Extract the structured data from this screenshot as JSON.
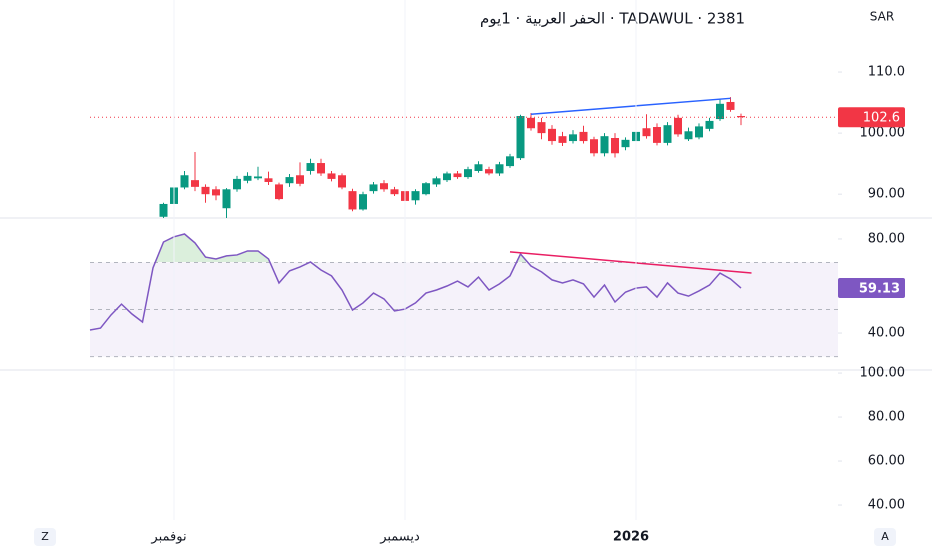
{
  "chart_data": [
    {
      "type": "candlestick",
      "title": "TADAWUL · 2381 · الحفر العربية · 1يوم",
      "y_label": "SAR",
      "categories": [
        null,
        null,
        null,
        null,
        null,
        null,
        null,
        null,
        "نوفمبر",
        null,
        null,
        null,
        null,
        null,
        null,
        null,
        null,
        null,
        null,
        null,
        null,
        null,
        null,
        null,
        null,
        null,
        null,
        null,
        null,
        null,
        "ديسمبر",
        null,
        null,
        null,
        null,
        null,
        null,
        null,
        null,
        null,
        null,
        null,
        null,
        null,
        null,
        null,
        null,
        null,
        null,
        null,
        null,
        null,
        "2026",
        null,
        null,
        null,
        null,
        null,
        null,
        null,
        null,
        null,
        null
      ],
      "open": [
        null,
        null,
        null,
        null,
        null,
        null,
        null,
        86.3,
        88.4,
        91.1,
        92.3,
        91.2,
        90.8,
        87.7,
        90.8,
        92.2,
        92.6,
        92.6,
        91.6,
        91.8,
        93.1,
        93.8,
        95.1,
        93.4,
        93.1,
        90.5,
        87.5,
        90.5,
        91.8,
        90.8,
        90.5,
        89.0,
        90.0,
        91.6,
        92.3,
        93.4,
        92.8,
        93.8,
        94.1,
        93.4,
        94.6,
        95.9,
        102.5,
        101.8,
        100.7,
        99.5,
        98.7,
        100.2,
        99.0,
        96.7,
        99.2,
        97.7,
        98.7,
        100.8,
        101.0,
        98.4,
        102.5,
        99.0,
        99.3,
        100.7,
        102.3,
        105.1,
        102.8
      ],
      "high": [
        null,
        null,
        null,
        null,
        null,
        null,
        null,
        88.6,
        92.8,
        93.8,
        96.9,
        91.6,
        91.3,
        91.0,
        93.0,
        93.6,
        94.5,
        93.7,
        91.9,
        93.3,
        95.2,
        95.8,
        95.8,
        93.8,
        93.4,
        90.9,
        90.4,
        92.0,
        92.3,
        91.2,
        90.8,
        90.8,
        92.0,
        92.9,
        93.7,
        93.8,
        94.5,
        95.4,
        94.5,
        95.3,
        96.6,
        103.0,
        103.3,
        102.5,
        101.3,
        100.2,
        100.5,
        101.2,
        99.4,
        100.0,
        100.0,
        99.3,
        101.0,
        103.1,
        101.6,
        101.8,
        103.0,
        100.9,
        101.6,
        102.5,
        105.5,
        105.9,
        103.2
      ],
      "low": [
        null,
        null,
        null,
        null,
        null,
        null,
        null,
        86.1,
        88.2,
        90.8,
        90.5,
        88.6,
        89.0,
        86.0,
        90.4,
        91.8,
        92.3,
        91.5,
        89.0,
        91.2,
        91.3,
        93.2,
        93.0,
        92.1,
        90.8,
        87.2,
        87.3,
        90.1,
        90.4,
        89.7,
        88.5,
        88.3,
        89.8,
        91.2,
        92.0,
        92.5,
        92.5,
        93.5,
        93.1,
        93.0,
        94.3,
        95.6,
        100.4,
        99.0,
        98.1,
        97.9,
        98.3,
        98.3,
        96.2,
        96.2,
        96.0,
        97.2,
        98.3,
        99.1,
        98.0,
        98.0,
        99.4,
        98.7,
        99.0,
        100.3,
        102.0,
        103.5,
        101.3
      ],
      "close": [
        null,
        null,
        null,
        null,
        null,
        null,
        null,
        88.4,
        91.1,
        93.1,
        91.2,
        90.0,
        89.8,
        90.8,
        92.5,
        93.0,
        92.9,
        92.0,
        89.2,
        92.8,
        91.7,
        95.1,
        93.4,
        92.5,
        91.1,
        87.5,
        90.0,
        91.6,
        90.8,
        90.0,
        88.9,
        90.5,
        91.8,
        92.6,
        93.4,
        92.8,
        94.1,
        94.9,
        93.4,
        94.9,
        96.2,
        102.8,
        100.8,
        100.0,
        98.7,
        98.4,
        99.8,
        98.7,
        96.7,
        99.5,
        96.7,
        98.9,
        100.2,
        99.5,
        98.4,
        101.3,
        99.8,
        100.3,
        101.1,
        102.0,
        104.8,
        103.8,
        102.6
      ],
      "up_color": "#089981",
      "down_color": "#f23645",
      "ylim": [
        86.1,
        121.8
      ],
      "yticks": [
        {
          "value": 110,
          "label": "110.0"
        },
        {
          "value": 100,
          "label": "100.00"
        },
        {
          "value": 90,
          "label": "90.00"
        }
      ],
      "trendline": {
        "x": [
          42,
          61
        ],
        "y": [
          103.1,
          105.7
        ],
        "color": "#2962ff"
      }
    },
    {
      "type": "line",
      "color": "#7e57c2",
      "values": [
        41.3,
        42.1,
        47.7,
        52.3,
        48.1,
        44.7,
        67.7,
        78.7,
        80.9,
        82.1,
        78.3,
        72.3,
        71.5,
        72.8,
        73.2,
        74.9,
        74.9,
        71.5,
        61.3,
        66.4,
        68.1,
        70.2,
        66.8,
        64.3,
        58.3,
        49.8,
        52.8,
        57.0,
        54.5,
        49.4,
        50.2,
        52.8,
        57.0,
        58.3,
        60.0,
        62.1,
        59.6,
        63.8,
        58.3,
        60.9,
        64.3,
        73.6,
        68.5,
        66.0,
        62.6,
        61.3,
        62.6,
        60.9,
        55.3,
        60.4,
        53.2,
        57.4,
        59.1,
        59.6,
        55.3,
        61.3,
        57.0,
        55.7,
        57.9,
        60.4,
        65.5,
        63.0,
        59.13
      ],
      "ylim": [
        24.3,
        88.9
      ],
      "yticks": [
        {
          "value": 80,
          "label": "80.00"
        },
        {
          "value": 40,
          "label": "40.00"
        }
      ],
      "bands": [
        70,
        50,
        30
      ],
      "trendline": {
        "x": [
          40,
          63
        ],
        "y": [
          74.5,
          65.5
        ],
        "color": "#e91e63"
      }
    },
    {
      "type": "empty",
      "ylim": [
        33.2,
        101.4
      ],
      "yticks": [
        {
          "value": 100,
          "label": "100.00"
        },
        {
          "value": 80,
          "label": "80.00"
        },
        {
          "value": 60,
          "label": "60.00"
        },
        {
          "value": 40,
          "label": "40.00"
        }
      ]
    }
  ],
  "controls": [
    "Z",
    "A"
  ]
}
